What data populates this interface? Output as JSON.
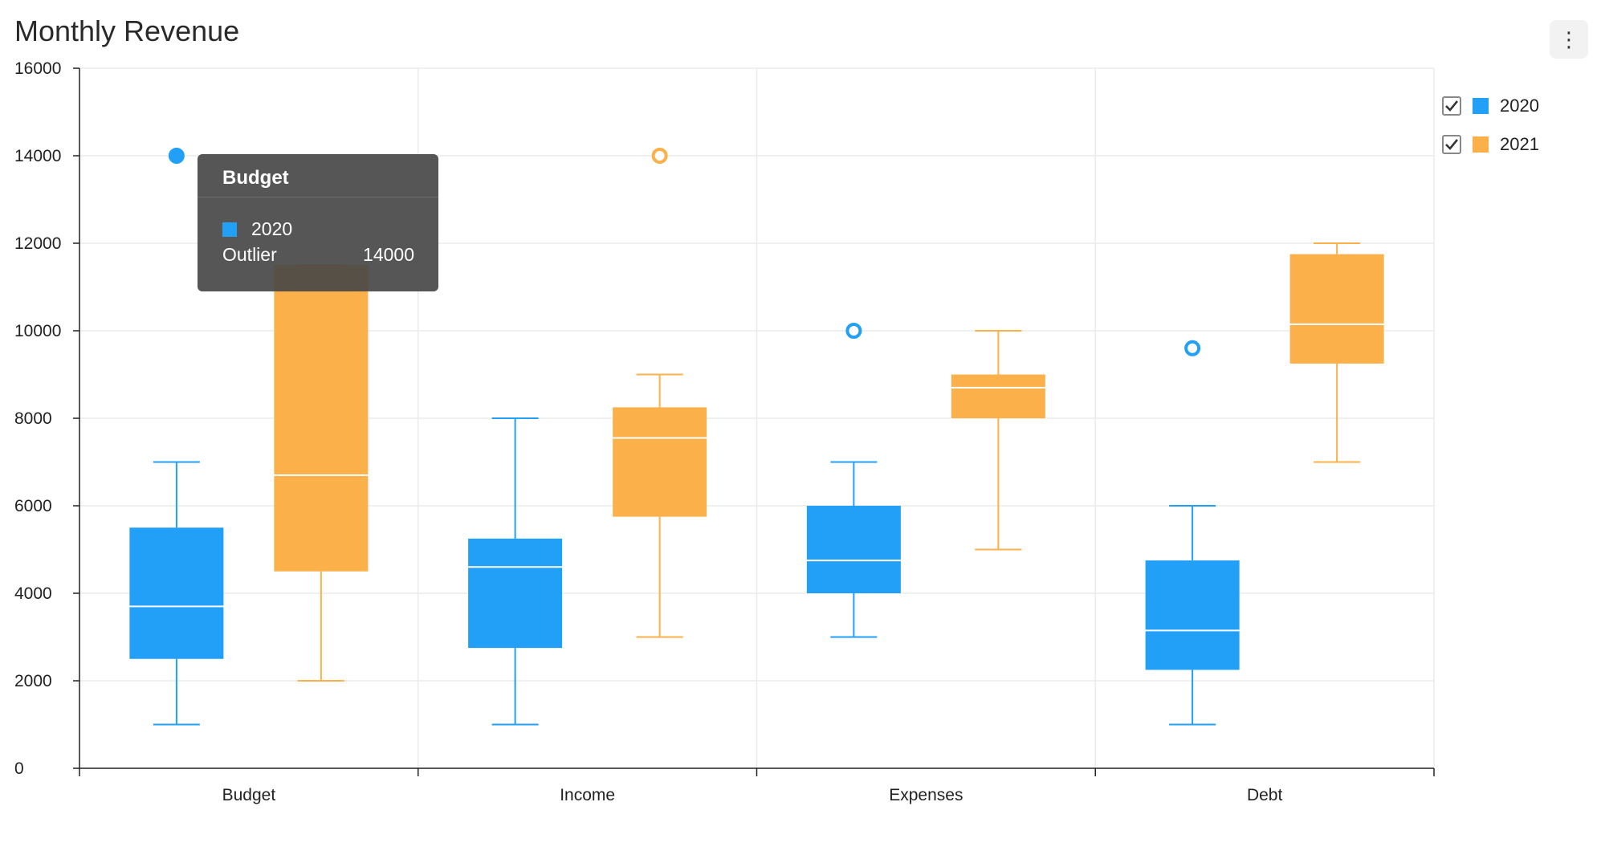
{
  "title": "Monthly Revenue",
  "menu_icon": "vertical-ellipsis-icon",
  "colors": {
    "2020": "#229ff7",
    "2021": "#fbb049",
    "grid": "#ebebeb",
    "axis": "#222222"
  },
  "legend": [
    {
      "label": "2020",
      "checked": true,
      "color": "#229ff7"
    },
    {
      "label": "2021",
      "checked": true,
      "color": "#fbb049"
    }
  ],
  "tooltip": {
    "title": "Budget",
    "series": "2020",
    "label": "Outlier",
    "value": "14000",
    "color": "#229ff7"
  },
  "chart_data": {
    "type": "boxplot",
    "title": "Monthly Revenue",
    "categories": [
      "Budget",
      "Income",
      "Expenses",
      "Debt"
    ],
    "ylim": [
      0,
      16000
    ],
    "yticks": [
      0,
      2000,
      4000,
      6000,
      8000,
      10000,
      12000,
      14000,
      16000
    ],
    "grid": true,
    "legend_position": "right",
    "series": [
      {
        "name": "2020",
        "color": "#229ff7",
        "boxes": [
          {
            "min": 1000,
            "q1": 2500,
            "median": 3700,
            "q3": 5500,
            "max": 7000,
            "outliers": [
              14000
            ],
            "outlier_filled": true
          },
          {
            "min": 1000,
            "q1": 2750,
            "median": 4600,
            "q3": 5250,
            "max": 8000,
            "outliers": []
          },
          {
            "min": 3000,
            "q1": 4000,
            "median": 4750,
            "q3": 6000,
            "max": 7000,
            "outliers": [
              10000
            ]
          },
          {
            "min": 1000,
            "q1": 2250,
            "median": 3150,
            "q3": 4750,
            "max": 6000,
            "outliers": [
              9600
            ]
          }
        ]
      },
      {
        "name": "2021",
        "color": "#fbb049",
        "boxes": [
          {
            "min": 2000,
            "q1": 4500,
            "median": 6700,
            "q3": 11500,
            "max": 11500,
            "outliers": []
          },
          {
            "min": 3000,
            "q1": 5750,
            "median": 7550,
            "q3": 8250,
            "max": 9000,
            "outliers": [
              14000
            ]
          },
          {
            "min": 5000,
            "q1": 8000,
            "median": 8700,
            "q3": 9000,
            "max": 10000,
            "outliers": []
          },
          {
            "min": 7000,
            "q1": 9250,
            "median": 10150,
            "q3": 11750,
            "max": 12000,
            "outliers": []
          }
        ]
      }
    ]
  }
}
